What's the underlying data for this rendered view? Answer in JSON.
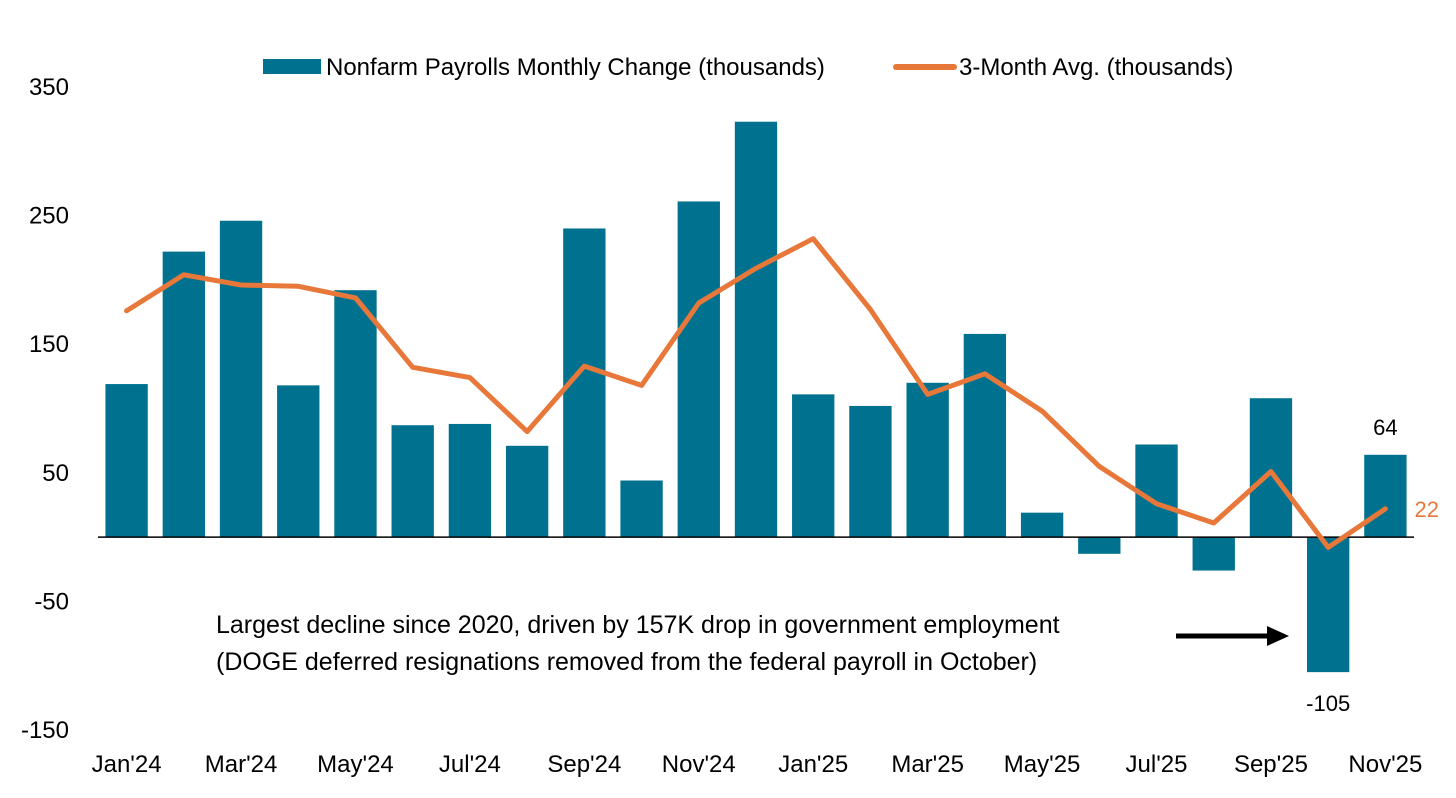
{
  "chart_data": {
    "type": "bar+line",
    "title": "",
    "xlabel": "",
    "ylabel": "",
    "ylim": [
      -150,
      350
    ],
    "yticks": [
      350,
      250,
      150,
      50,
      -50,
      -150
    ],
    "ytick_labels": [
      "350",
      "250",
      "150",
      "50",
      "-50",
      "-150"
    ],
    "categories": [
      "Jan'24",
      "Feb'24",
      "Mar'24",
      "Apr'24",
      "May'24",
      "Jun'24",
      "Jul'24",
      "Aug'24",
      "Sep'24",
      "Oct'24",
      "Nov'24",
      "Dec'24",
      "Jan'25",
      "Feb'25",
      "Mar'25",
      "Apr'25",
      "May'25",
      "Jun'25",
      "Jul'25",
      "Aug'25",
      "Sep'25",
      "Oct'25",
      "Nov'25"
    ],
    "x_tick_labels": [
      "Jan'24",
      "",
      "Mar'24",
      "",
      "May'24",
      "",
      "Jul'24",
      "",
      "Sep'24",
      "",
      "Nov'24",
      "",
      "Jan'25",
      "",
      "Mar'25",
      "",
      "May'25",
      "",
      "Jul'25",
      "",
      "Sep'25",
      "",
      "Nov'25"
    ],
    "series": [
      {
        "name": "Nonfarm Payrolls Monthly Change (thousands)",
        "type": "bar",
        "color": "#00728F",
        "values": [
          119,
          222,
          246,
          118,
          192,
          87,
          88,
          71,
          240,
          44,
          261,
          323,
          111,
          102,
          120,
          158,
          19,
          -13,
          72,
          -26,
          108,
          -105,
          64
        ]
      },
      {
        "name": "3-Month Avg. (thousands)",
        "type": "line",
        "color": "#E8773A",
        "values": [
          176,
          204,
          196,
          195,
          186,
          132,
          124,
          82,
          133,
          118,
          182,
          209,
          232,
          177,
          111,
          127,
          98,
          55,
          26,
          11,
          51,
          -8,
          22
        ]
      }
    ],
    "data_labels": [
      {
        "series": 0,
        "index": 22,
        "text": "64",
        "color": "#000000"
      },
      {
        "series": 0,
        "index": 21,
        "text": "-105",
        "color": "#000000"
      },
      {
        "series": 1,
        "index": 22,
        "text": "22",
        "color": "#E8773A"
      }
    ],
    "annotation": {
      "lines": [
        "Largest decline since 2020, driven by 157K drop in government employment",
        "(DOGE deferred resignations removed from the federal payroll in October)"
      ],
      "arrow_target_index": 21
    },
    "legend_position": "top-center"
  }
}
